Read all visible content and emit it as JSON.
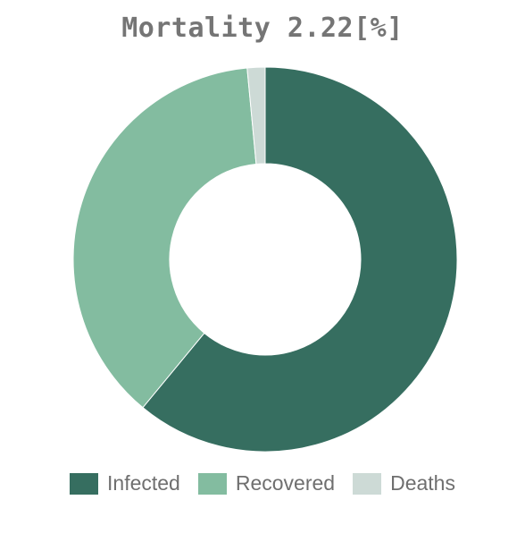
{
  "chart_data": {
    "type": "pie",
    "variant": "donut",
    "title": "Mortality 2.22[%]",
    "categories": [
      "Infected",
      "Recovered",
      "Deaths"
    ],
    "values": [
      61.0,
      37.5,
      1.5
    ],
    "unit": "%",
    "colors": [
      "#366e60",
      "#83bca0",
      "#cddad6"
    ],
    "legend_position": "bottom",
    "start_angle_deg": 0,
    "direction": "clockwise"
  }
}
